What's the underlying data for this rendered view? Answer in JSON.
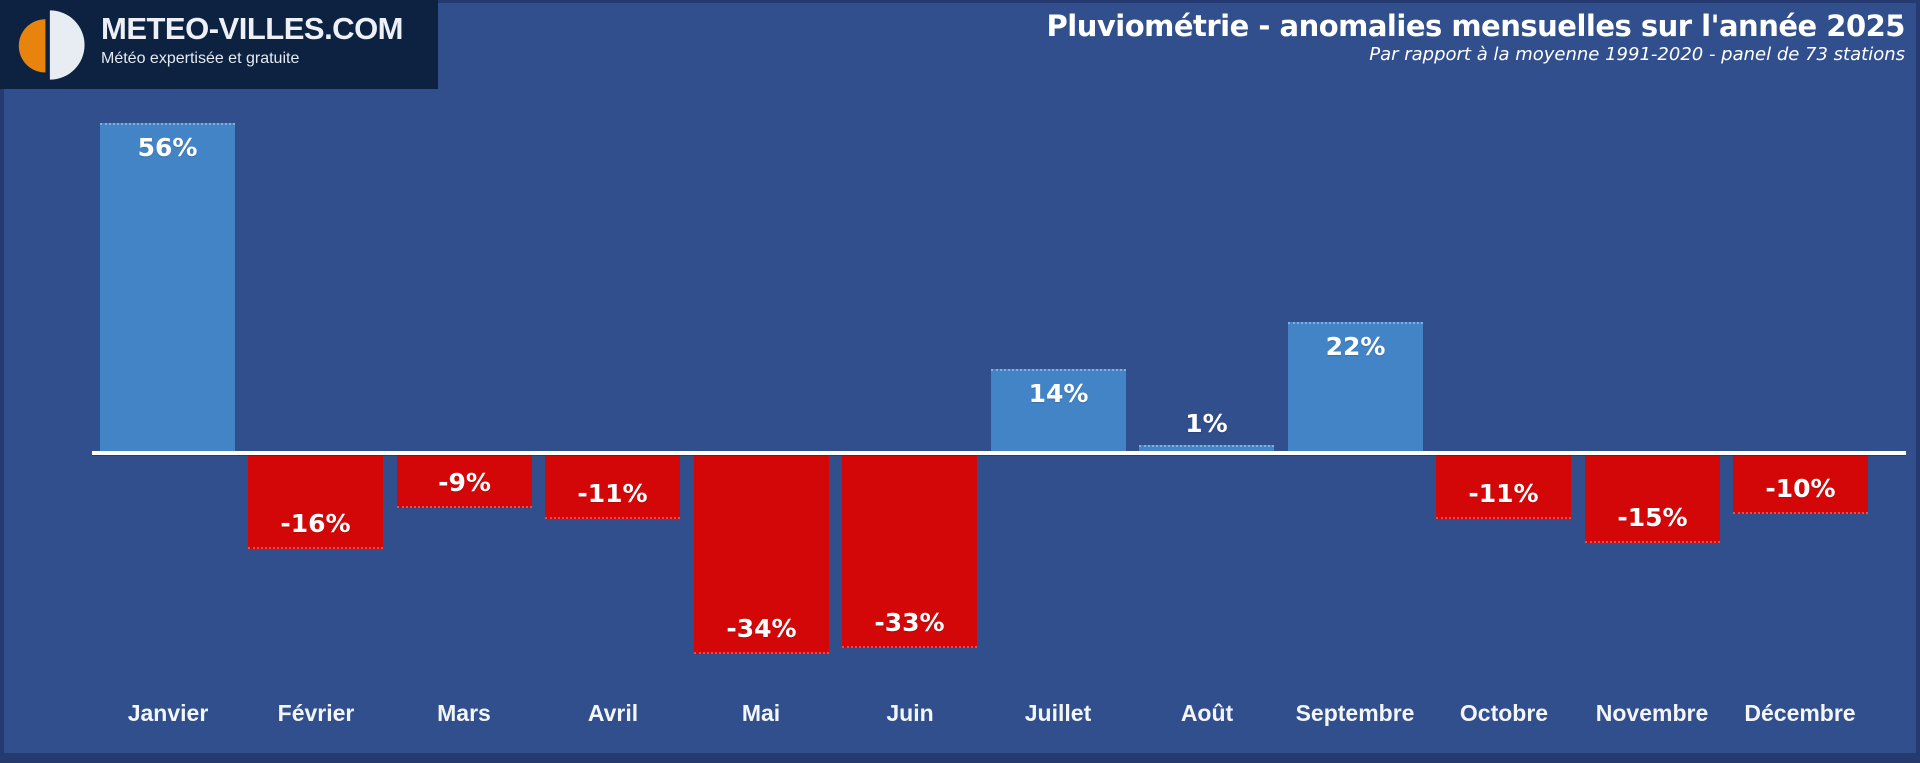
{
  "logo": {
    "title": "METEO-VILLES.COM",
    "tagline": "Météo expertisée et gratuite",
    "icon": "meteo-villes-logo-icon"
  },
  "header": {
    "title": "Pluviométrie - anomalies mensuelles sur l'année 2025",
    "subtitle": "Par rapport à la moyenne 1991-2020 - panel de 73 stations"
  },
  "chart_data": {
    "type": "bar",
    "title": "Pluviométrie - anomalies mensuelles sur l'année 2025",
    "subtitle": "Par rapport à la moyenne 1991-2020 - panel de 73 stations",
    "categories": [
      "Janvier",
      "Février",
      "Mars",
      "Avril",
      "Mai",
      "Juin",
      "Juillet",
      "Août",
      "Septembre",
      "Octobre",
      "Novembre",
      "Décembre"
    ],
    "values": [
      56,
      -16,
      -9,
      -11,
      -34,
      -33,
      14,
      1,
      22,
      -11,
      -15,
      -10
    ],
    "value_suffix": "%",
    "xlabel": "",
    "ylabel": "",
    "ylim": [
      -40,
      60
    ],
    "baseline": 0,
    "grid": false,
    "legend": "none",
    "colors": {
      "positive_bar": "#4384C6",
      "negative_bar": "#D40708",
      "background": "#314F8C",
      "frame": "#243A70",
      "axis_line": "#FDFDFE",
      "label_text": "#FFFFFF",
      "logo_background": "#0D2240",
      "logo_orange": "#E8830D",
      "logo_white": "#E8ECF3"
    }
  }
}
